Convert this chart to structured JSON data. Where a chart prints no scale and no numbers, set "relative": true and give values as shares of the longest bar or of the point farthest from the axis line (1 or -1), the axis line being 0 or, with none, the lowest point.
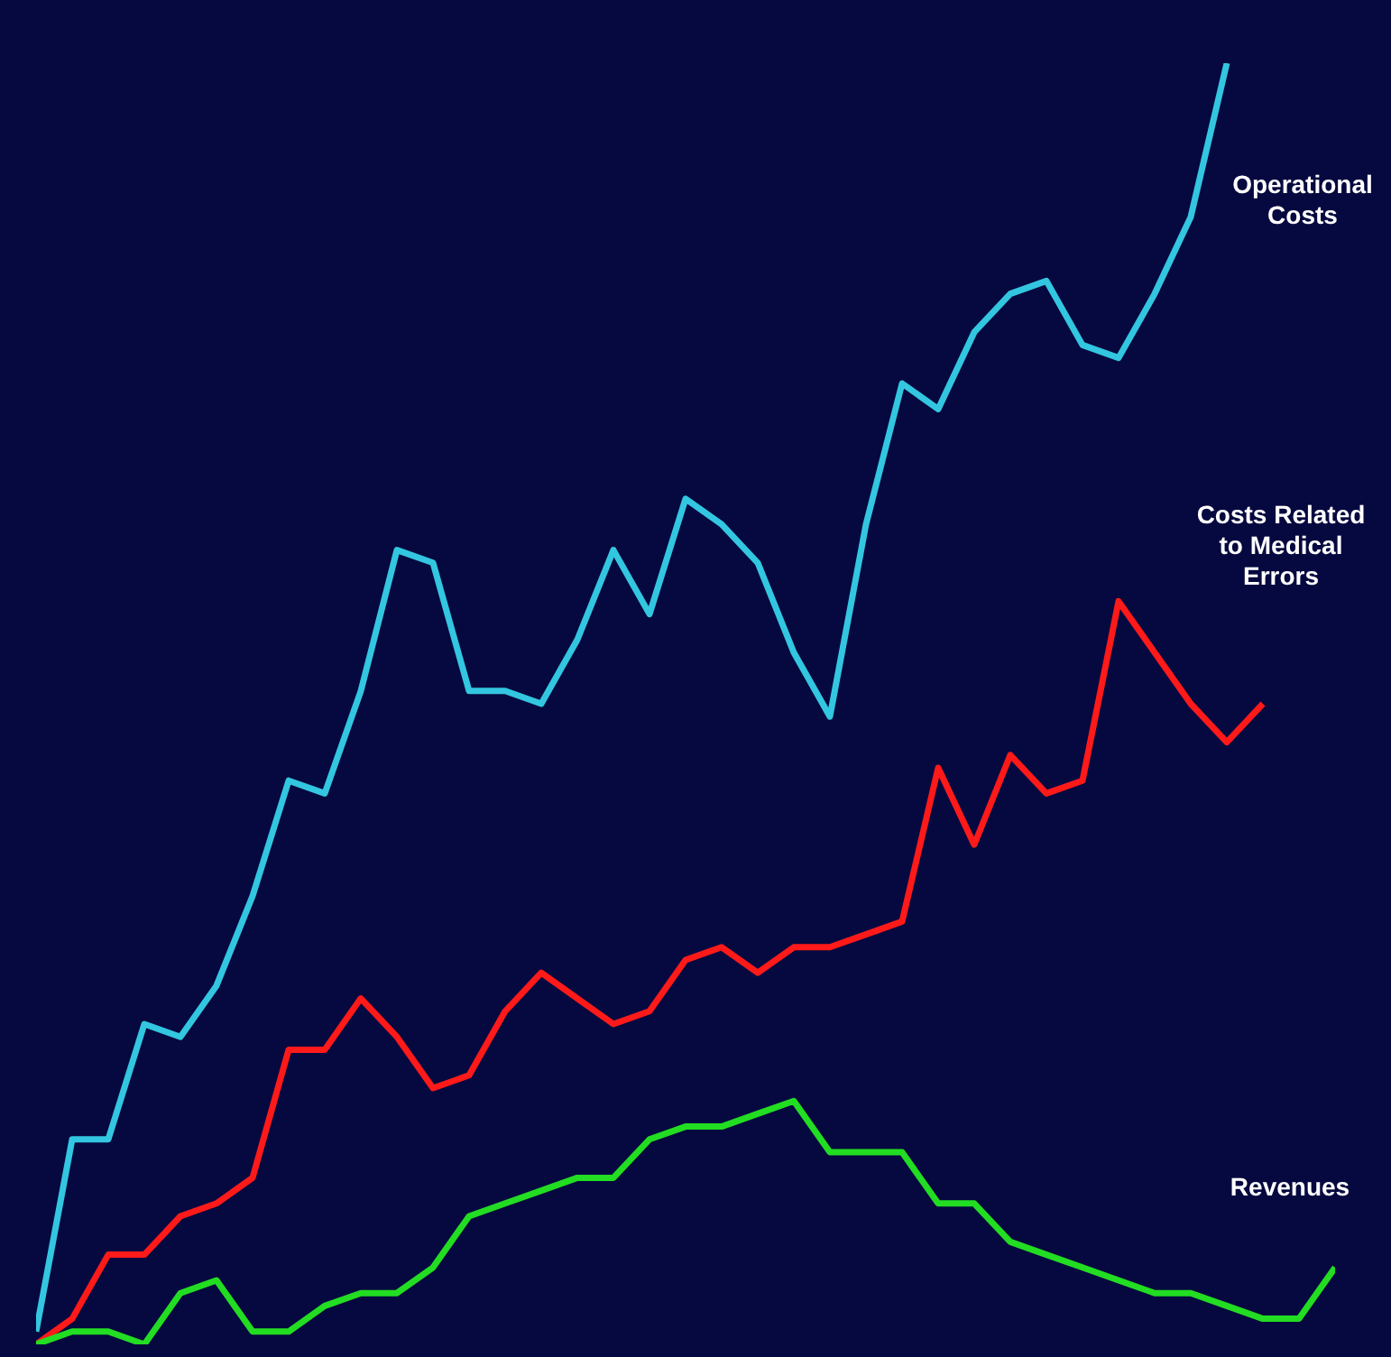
{
  "chart_data": {
    "type": "line",
    "relative": true,
    "categories": [
      null,
      null,
      null,
      null,
      null,
      null,
      null,
      null,
      null,
      null,
      null,
      null,
      null,
      null,
      null,
      null,
      null,
      null,
      null,
      null,
      null,
      null,
      null,
      null,
      null,
      null,
      null,
      null,
      null,
      null,
      null,
      null,
      null,
      null,
      null,
      null,
      null
    ],
    "series": [
      {
        "name": "Operational Costs",
        "color": "#33c6e0",
        "values": [
          0.01,
          0.16,
          0.16,
          0.25,
          0.24,
          0.28,
          0.35,
          0.44,
          0.43,
          0.51,
          0.62,
          0.61,
          0.51,
          0.51,
          0.5,
          0.55,
          0.62,
          0.57,
          0.66,
          0.64,
          0.61,
          0.54,
          0.49,
          0.64,
          0.75,
          0.73,
          0.79,
          0.82,
          0.83,
          0.78,
          0.77,
          0.82,
          0.88,
          1.0,
          null,
          null,
          null
        ]
      },
      {
        "name": "Costs Related to Medical Errors",
        "color": "#ff1a1a",
        "values": [
          0,
          0.02,
          0.07,
          0.07,
          0.1,
          0.11,
          0.13,
          0.23,
          0.23,
          0.27,
          0.24,
          0.2,
          0.21,
          0.26,
          0.29,
          0.27,
          0.25,
          0.26,
          0.3,
          0.31,
          0.29,
          0.31,
          0.31,
          0.32,
          0.33,
          0.45,
          0.39,
          0.46,
          0.43,
          0.44,
          0.58,
          0.54,
          0.5,
          0.47,
          0.5,
          null,
          null
        ]
      },
      {
        "name": "Revenues",
        "color": "#22dd22",
        "values": [
          0,
          0.01,
          0.01,
          0,
          0.04,
          0.05,
          0.01,
          0.01,
          0.03,
          0.04,
          0.04,
          0.06,
          0.1,
          0.11,
          0.12,
          0.13,
          0.13,
          0.16,
          0.17,
          0.17,
          0.18,
          0.19,
          0.15,
          0.15,
          0.15,
          0.11,
          0.11,
          0.08,
          0.07,
          0.06,
          0.05,
          0.04,
          0.04,
          0.03,
          0.02,
          0.02,
          0.06
        ]
      }
    ]
  }
}
